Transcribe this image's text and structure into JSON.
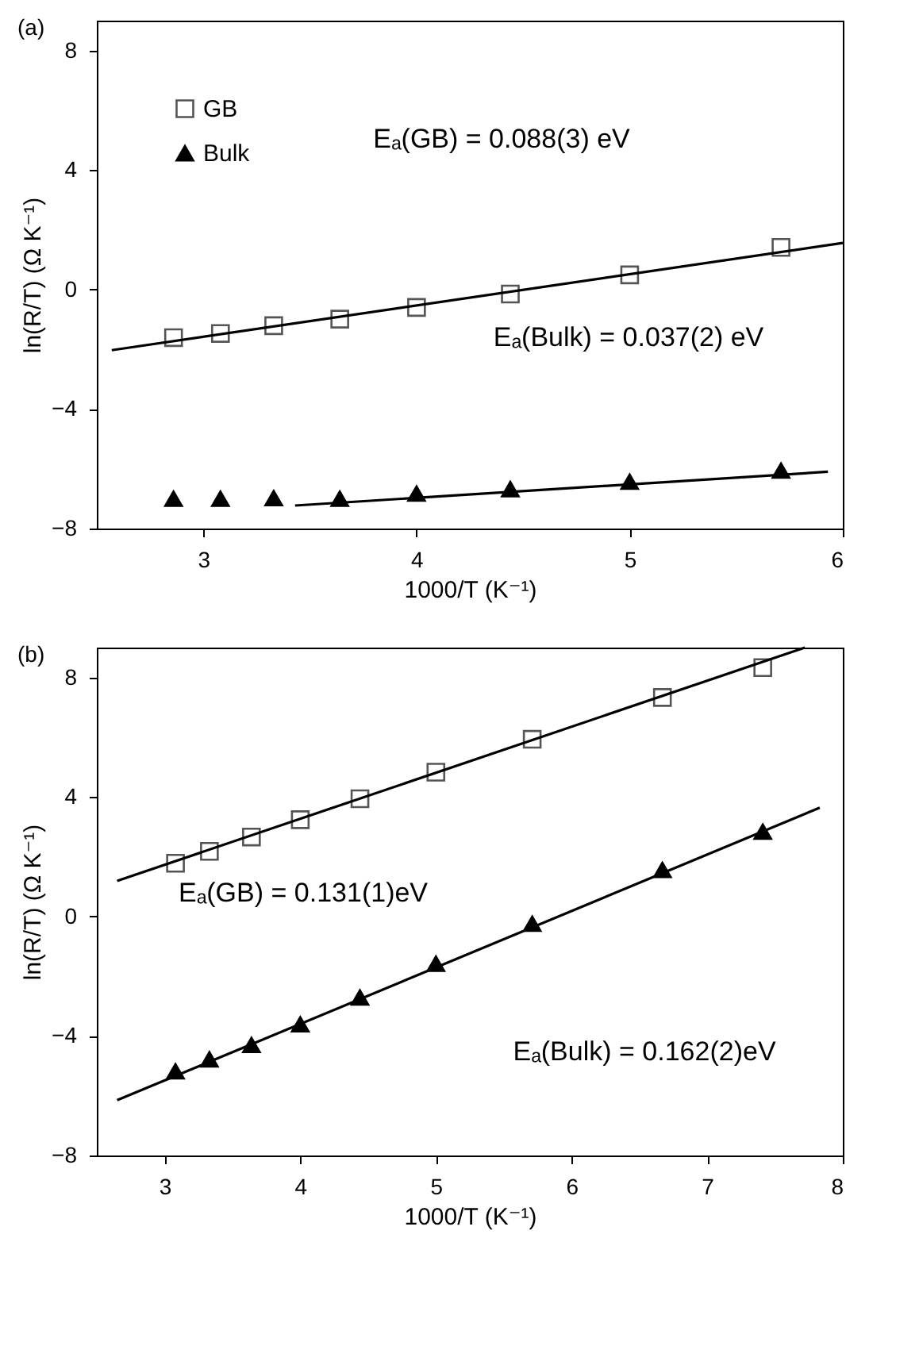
{
  "chart_data": [
    {
      "type": "scatter",
      "xlabel": "1000/T (K⁻¹)",
      "ylabel": "ln(R/T) (Ω K⁻¹)",
      "xlim": [
        2.5,
        6
      ],
      "ylim": [
        -8,
        9
      ],
      "xticks": [
        3,
        4,
        5,
        6
      ],
      "yticks": [
        -8,
        -4,
        0,
        4,
        8
      ],
      "grid": false,
      "legend": "top left",
      "annotations": [
        "(a)",
        "Eₐ(GB) = 0.088(3) eV",
        "Eₐ(Bulk) = 0.037(2) eV"
      ],
      "series": [
        {
          "name": "GB",
          "marker": "square",
          "color": "#555555",
          "x": [
            2.86,
            3.08,
            3.33,
            3.64,
            4.0,
            4.44,
            5.0,
            5.71
          ],
          "values": [
            -1.61,
            -1.47,
            -1.21,
            -0.99,
            -0.6,
            -0.15,
            0.49,
            1.41
          ]
        },
        {
          "name": "Bulk",
          "marker": "triangle",
          "color": "#000000",
          "x": [
            2.86,
            3.08,
            3.33,
            3.64,
            4.0,
            4.44,
            5.0,
            5.71
          ],
          "values": [
            -7.0,
            -7.0,
            -6.98,
            -7.0,
            -6.83,
            -6.68,
            -6.43,
            -6.06
          ]
        },
        {
          "type": "line",
          "marker": "none",
          "color": "#000000",
          "x": [
            2.57,
            6.0
          ],
          "values": [
            -2.03,
            1.56
          ]
        },
        {
          "type": "line",
          "marker": "none",
          "color": "#000000",
          "x": [
            3.43,
            5.93
          ],
          "values": [
            -7.23,
            -6.1
          ]
        }
      ]
    },
    {
      "type": "scatter",
      "xlabel": "1000/T (K⁻¹)",
      "ylabel": "ln(R/T) (Ω K⁻¹)",
      "xlim": [
        2.5,
        8
      ],
      "ylim": [
        -8,
        9
      ],
      "xticks": [
        3,
        4,
        5,
        6,
        7,
        8
      ],
      "yticks": [
        -8,
        -4,
        0,
        4,
        8
      ],
      "grid": false,
      "legend": "top left",
      "annotations": [
        "(b)",
        "Eₐ(GB) = 0.131(1)eV",
        "Eₐ(Bulk) = 0.162(2)eV"
      ],
      "series": [
        {
          "name": "GB",
          "marker": "square",
          "color": "#555555",
          "x": [
            3.08,
            3.33,
            3.64,
            4.0,
            4.44,
            5.0,
            5.71,
            6.67,
            7.41
          ],
          "values": [
            1.78,
            2.18,
            2.66,
            3.24,
            3.94,
            4.83,
            5.93,
            7.33,
            8.33
          ]
        },
        {
          "name": "Bulk",
          "marker": "triangle",
          "color": "#000000",
          "x": [
            3.08,
            3.33,
            3.64,
            4.0,
            4.44,
            5.0,
            5.71,
            6.67,
            7.41
          ],
          "values": [
            -5.18,
            -4.78,
            -4.3,
            -3.61,
            -2.71,
            -1.58,
            -0.24,
            1.56,
            2.84
          ]
        },
        {
          "type": "line",
          "marker": "none",
          "color": "#000000",
          "x": [
            2.65,
            7.72
          ],
          "values": [
            1.19,
            9.0
          ]
        },
        {
          "type": "line",
          "marker": "none",
          "color": "#000000",
          "x": [
            2.65,
            7.83
          ],
          "values": [
            -6.15,
            3.64
          ]
        }
      ]
    }
  ]
}
